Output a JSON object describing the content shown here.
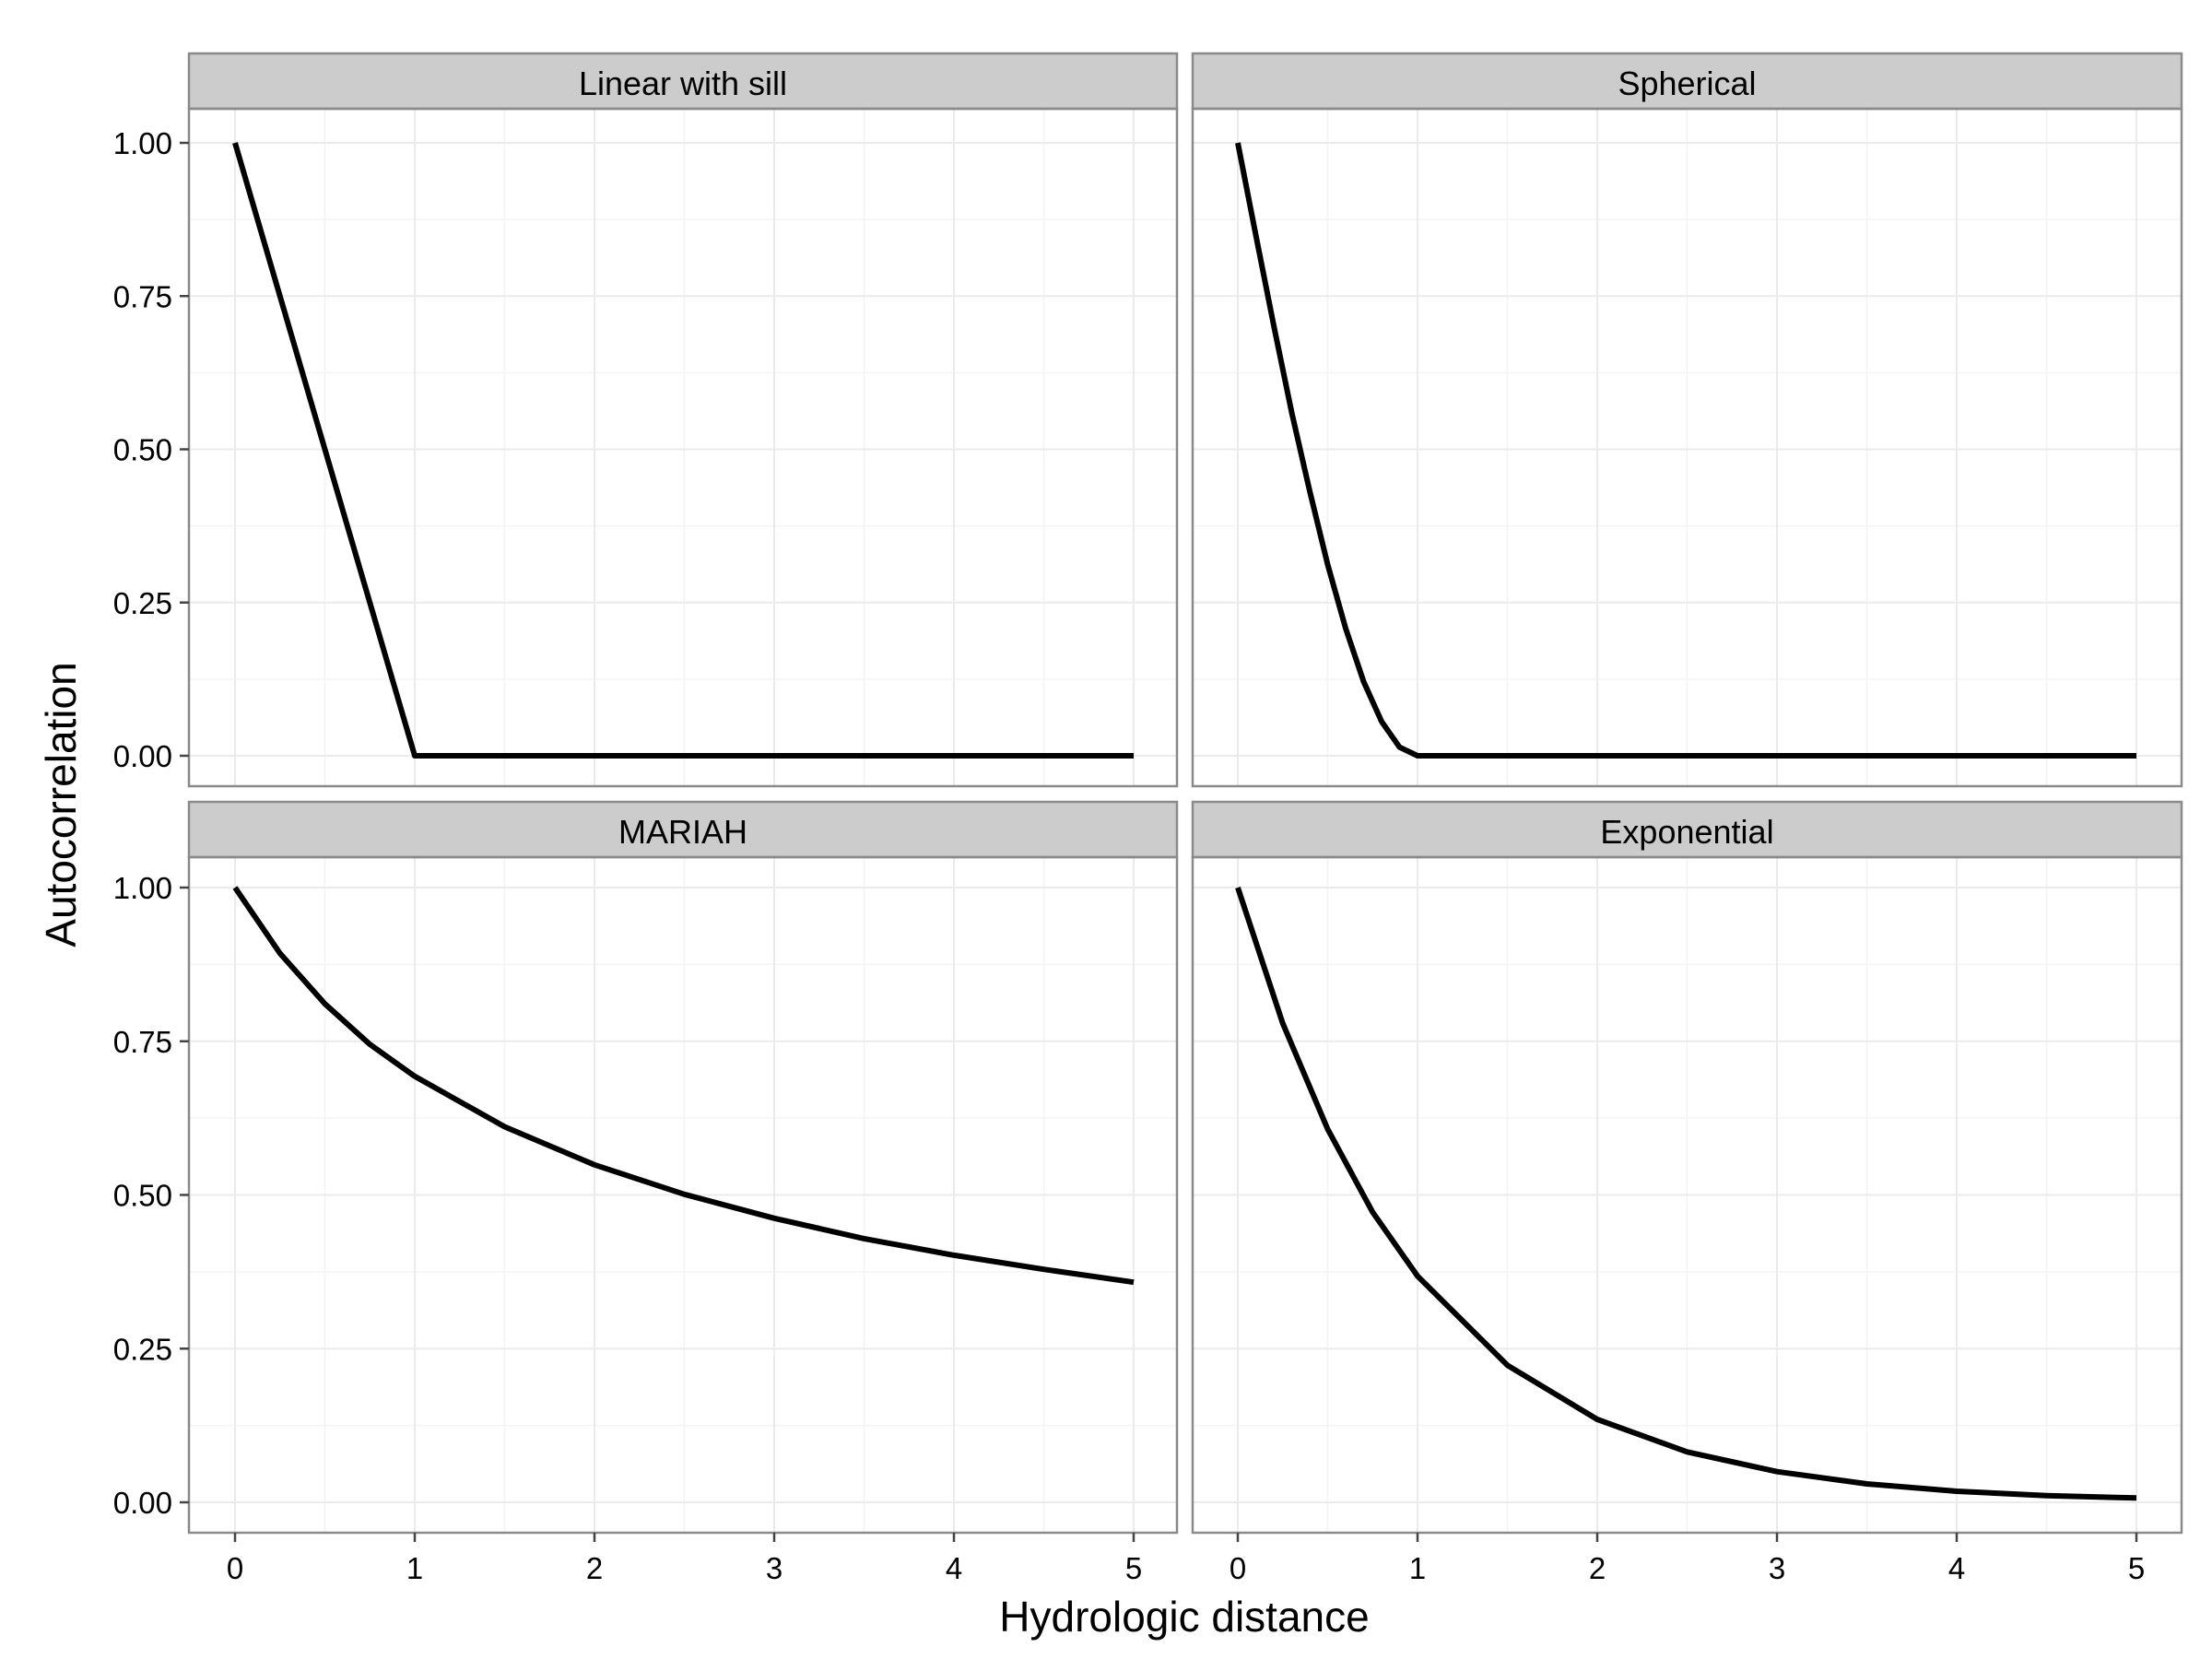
{
  "chart_data": {
    "type": "line",
    "layout": "facet-grid-2x2",
    "xlabel": "Hydrologic distance",
    "ylabel": "Autocorrelation",
    "xlim": [
      0,
      5
    ],
    "ylim": [
      0,
      1
    ],
    "x_ticks": [
      "0",
      "1",
      "2",
      "3",
      "4",
      "5"
    ],
    "y_ticks": [
      "0.00",
      "0.25",
      "0.50",
      "0.75",
      "1.00"
    ],
    "grid": true,
    "line_color": "#000000",
    "panels": [
      {
        "name": "Linear with sill",
        "x": [
          0,
          1,
          1.5,
          2,
          2.5,
          3,
          3.5,
          4,
          4.5,
          5
        ],
        "y": [
          1,
          0,
          0,
          0,
          0,
          0,
          0,
          0,
          0,
          0
        ]
      },
      {
        "name": "Spherical",
        "x": [
          0,
          0.1,
          0.2,
          0.3,
          0.4,
          0.5,
          0.6,
          0.7,
          0.8,
          0.9,
          1,
          2,
          3,
          4,
          5
        ],
        "y": [
          1,
          0.85,
          0.702,
          0.56,
          0.432,
          0.312,
          0.208,
          0.121,
          0.056,
          0.014,
          0,
          0,
          0,
          0,
          0
        ]
      },
      {
        "name": "MARIAH",
        "x": [
          0,
          0.25,
          0.5,
          0.75,
          1,
          1.5,
          2,
          2.5,
          3,
          3.5,
          4,
          4.5,
          5
        ],
        "y": [
          1,
          0.893,
          0.811,
          0.745,
          0.693,
          0.611,
          0.549,
          0.501,
          0.462,
          0.429,
          0.402,
          0.379,
          0.358
        ]
      },
      {
        "name": "Exponential",
        "x": [
          0,
          0.25,
          0.5,
          0.75,
          1,
          1.5,
          2,
          2.5,
          3,
          3.5,
          4,
          4.5,
          5
        ],
        "y": [
          1,
          0.779,
          0.607,
          0.472,
          0.368,
          0.223,
          0.135,
          0.082,
          0.05,
          0.03,
          0.018,
          0.011,
          0.007
        ]
      }
    ]
  }
}
